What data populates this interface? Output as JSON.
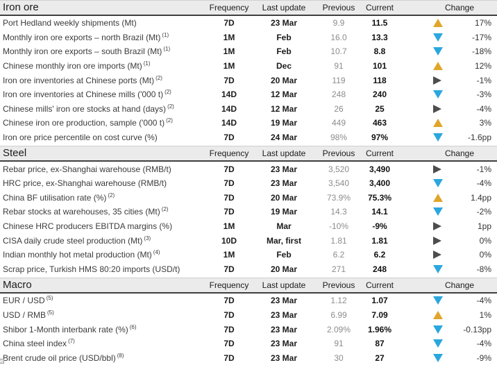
{
  "columns": {
    "frequency": "Frequency",
    "last_update": "Last update",
    "previous": "Previous",
    "current": "Current",
    "change": "Change"
  },
  "change_colors": {
    "up": "#dfa62b",
    "down": "#2ba7de",
    "flat": "#4d4d4d"
  },
  "sections": [
    {
      "title": "Iron ore",
      "rows": [
        {
          "name": "Port Hedland weekly shipments (Mt)",
          "sup": "",
          "frequency": "7D",
          "last_update": "23 Mar",
          "previous": "9.9",
          "current": "11.5",
          "change_dir": "up",
          "change": "17%"
        },
        {
          "name": "Monthly iron ore exports – north Brazil (Mt)",
          "sup": "(1)",
          "frequency": "1M",
          "last_update": "Feb",
          "previous": "16.0",
          "current": "13.3",
          "change_dir": "down",
          "change": "-17%"
        },
        {
          "name": "Monthly iron ore exports – south Brazil (Mt)",
          "sup": "(1)",
          "frequency": "1M",
          "last_update": "Feb",
          "previous": "10.7",
          "current": "8.8",
          "change_dir": "down",
          "change": "-18%"
        },
        {
          "name": "Chinese monthly iron ore imports (Mt)",
          "sup": "(1)",
          "frequency": "1M",
          "last_update": "Dec",
          "previous": "91",
          "current": "101",
          "change_dir": "up",
          "change": "12%"
        },
        {
          "name": "Iron ore inventories at Chinese ports (Mt)",
          "sup": "(2)",
          "frequency": "7D",
          "last_update": "20 Mar",
          "previous": "119",
          "current": "118",
          "change_dir": "flat",
          "change": "-1%"
        },
        {
          "name": "Iron ore inventories at Chinese mills ('000 t)",
          "sup": "(2)",
          "frequency": "14D",
          "last_update": "12 Mar",
          "previous": "248",
          "current": "240",
          "change_dir": "down",
          "change": "-3%"
        },
        {
          "name": "Chinese mills' iron ore stocks at hand (days)",
          "sup": "(2)",
          "frequency": "14D",
          "last_update": "12 Mar",
          "previous": "26",
          "current": "25",
          "change_dir": "flat",
          "change": "-4%"
        },
        {
          "name": "Chinese iron ore production, sample ('000 t)",
          "sup": "(2)",
          "frequency": "14D",
          "last_update": "19 Mar",
          "previous": "449",
          "current": "463",
          "change_dir": "up",
          "change": "3%"
        },
        {
          "name": "Iron ore price percentile on cost curve (%)",
          "sup": "",
          "frequency": "7D",
          "last_update": "24 Mar",
          "previous": "98%",
          "current": "97%",
          "change_dir": "down",
          "change": "-1.6pp"
        }
      ]
    },
    {
      "title": "Steel",
      "rows": [
        {
          "name": "Rebar price, ex-Shanghai warehouse (RMB/t)",
          "sup": "",
          "frequency": "7D",
          "last_update": "23 Mar",
          "previous": "3,520",
          "current": "3,490",
          "change_dir": "flat",
          "change": "-1%"
        },
        {
          "name": "HRC price, ex-Shanghai warehouse (RMB/t)",
          "sup": "",
          "frequency": "7D",
          "last_update": "23 Mar",
          "previous": "3,540",
          "current": "3,400",
          "change_dir": "down",
          "change": "-4%"
        },
        {
          "name": "China BF utilisation rate (%)",
          "sup": "(2)",
          "frequency": "7D",
          "last_update": "20 Mar",
          "previous": "73.9%",
          "current": "75.3%",
          "change_dir": "up",
          "change": "1.4pp"
        },
        {
          "name": "Rebar stocks at warehouses, 35 cities (Mt)",
          "sup": "(2)",
          "frequency": "7D",
          "last_update": "19 Mar",
          "previous": "14.3",
          "current": "14.1",
          "change_dir": "down",
          "change": "-2%"
        },
        {
          "name": "Chinese HRC producers EBITDA margins (%)",
          "sup": "",
          "frequency": "1M",
          "last_update": "Mar",
          "previous": "-10%",
          "current": "-9%",
          "change_dir": "flat",
          "change": "1pp"
        },
        {
          "name": "CISA daily crude steel production (Mt)",
          "sup": "(3)",
          "frequency": "10D",
          "last_update": "Mar, first",
          "previous": "1.81",
          "current": "1.81",
          "change_dir": "flat",
          "change": "0%"
        },
        {
          "name": "Indian monthly hot metal production (Mt)",
          "sup": "(4)",
          "frequency": "1M",
          "last_update": "Feb",
          "previous": "6.2",
          "current": "6.2",
          "change_dir": "flat",
          "change": "0%"
        },
        {
          "name": "Scrap price, Turkish HMS 80:20 imports (USD/t)",
          "sup": "",
          "frequency": "7D",
          "last_update": "20 Mar",
          "previous": "271",
          "current": "248",
          "change_dir": "down",
          "change": "-8%"
        }
      ]
    },
    {
      "title": "Macro",
      "rows": [
        {
          "name": "EUR / USD",
          "sup": "(5)",
          "frequency": "7D",
          "last_update": "23 Mar",
          "previous": "1.12",
          "current": "1.07",
          "change_dir": "down",
          "change": "-4%"
        },
        {
          "name": "USD / RMB",
          "sup": "(5)",
          "frequency": "7D",
          "last_update": "23 Mar",
          "previous": "6.99",
          "current": "7.09",
          "change_dir": "up",
          "change": "1%"
        },
        {
          "name": "Shibor 1-Month interbank rate (%)",
          "sup": "(6)",
          "frequency": "7D",
          "last_update": "23 Mar",
          "previous": "2.09%",
          "current": "1.96%",
          "change_dir": "down",
          "change": "-0.13pp"
        },
        {
          "name": "China steel index",
          "sup": "(7)",
          "frequency": "7D",
          "last_update": "23 Mar",
          "previous": "91",
          "current": "87",
          "change_dir": "down",
          "change": "-4%"
        },
        {
          "name": "Brent crude oil price (USD/bbl)",
          "sup": "(8)",
          "frequency": "7D",
          "last_update": "23 Mar",
          "previous": "30",
          "current": "27",
          "change_dir": "down",
          "change": "-9%"
        }
      ]
    }
  ]
}
